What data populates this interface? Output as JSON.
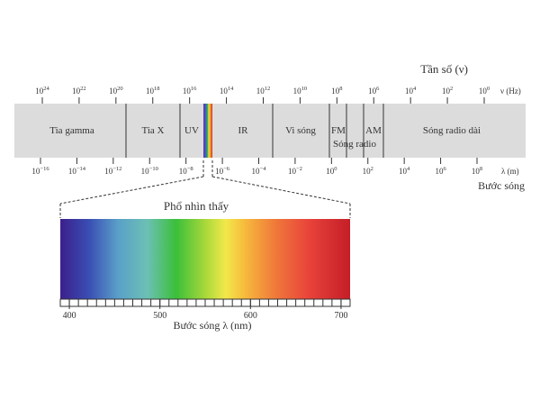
{
  "frequency_title": "Tần số (ν)",
  "frequency_unit": "ν (Hz)",
  "frequency_ticks": [
    {
      "base": "10",
      "exp": "24"
    },
    {
      "base": "10",
      "exp": "22"
    },
    {
      "base": "10",
      "exp": "20"
    },
    {
      "base": "10",
      "exp": "18"
    },
    {
      "base": "10",
      "exp": "16"
    },
    {
      "base": "10",
      "exp": "14"
    },
    {
      "base": "10",
      "exp": "12"
    },
    {
      "base": "10",
      "exp": "10"
    },
    {
      "base": "10",
      "exp": "8"
    },
    {
      "base": "10",
      "exp": "6"
    },
    {
      "base": "10",
      "exp": "4"
    },
    {
      "base": "10",
      "exp": "2"
    },
    {
      "base": "10",
      "exp": "0"
    }
  ],
  "wavelength_title": "Bước sóng",
  "wavelength_unit": "λ (m)",
  "wavelength_ticks": [
    {
      "base": "10",
      "exp": "−16"
    },
    {
      "base": "10",
      "exp": "−14"
    },
    {
      "base": "10",
      "exp": "−12"
    },
    {
      "base": "10",
      "exp": "−10"
    },
    {
      "base": "10",
      "exp": "−8"
    },
    {
      "base": "10",
      "exp": "−6"
    },
    {
      "base": "10",
      "exp": "−4"
    },
    {
      "base": "10",
      "exp": "−2"
    },
    {
      "base": "10",
      "exp": "0"
    },
    {
      "base": "10",
      "exp": "2"
    },
    {
      "base": "10",
      "exp": "4"
    },
    {
      "base": "10",
      "exp": "6"
    },
    {
      "base": "10",
      "exp": "8"
    }
  ],
  "bands": [
    {
      "key": "gamma",
      "label": "Tia gamma"
    },
    {
      "key": "xray",
      "label": "Tia X"
    },
    {
      "key": "uv",
      "label": "UV"
    },
    {
      "key": "ir",
      "label": "IR"
    },
    {
      "key": "microwave",
      "label": "Vi sóng"
    },
    {
      "key": "fm",
      "label": "FM"
    },
    {
      "key": "am",
      "label": "AM"
    },
    {
      "key": "longradio",
      "label": "Sóng radio dài"
    }
  ],
  "radio_group_label": "Sóng radio",
  "visible_title": "Phổ nhìn thấy",
  "visible_axis_label": "Bước sóng λ (nm)",
  "visible_range_nm": [
    390,
    710
  ],
  "visible_ticks_nm": [
    400,
    500,
    600,
    700
  ],
  "colors": {
    "band_fill": "#dcdcdc",
    "spectrum_stops": [
      "#3b1f8c",
      "#3a4fb4",
      "#5aa0c8",
      "#6cc0b4",
      "#3bbf3a",
      "#a8d83a",
      "#f2e84a",
      "#f6b83c",
      "#f07a3a",
      "#e8423a",
      "#c41e28"
    ]
  }
}
